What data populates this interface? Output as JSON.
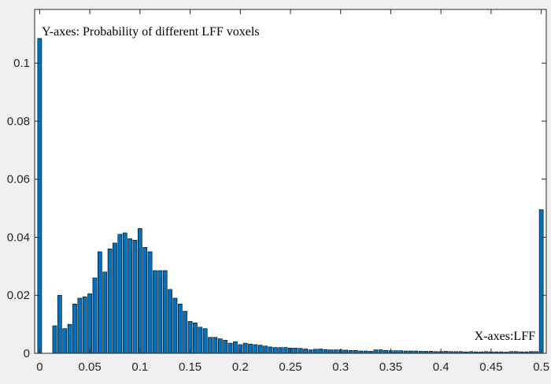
{
  "colors": {
    "bar_fill": "#0072BD",
    "bar_edge": "#000000",
    "axes_background": "#ffffff",
    "figure_background": "#f0f0f0",
    "axis_color": "#262626"
  },
  "chart_data": {
    "type": "bar",
    "title": "",
    "xlabel": "",
    "ylabel": "",
    "xlim": [
      -0.005,
      0.505
    ],
    "ylim": [
      0,
      0.1185
    ],
    "bin_width": 0.005,
    "box": true,
    "grid": false,
    "legend": "none",
    "x_ticks": [
      0,
      0.05,
      0.1,
      0.15,
      0.2,
      0.25,
      0.3,
      0.35,
      0.4,
      0.45,
      0.5
    ],
    "x_tick_labels": [
      "0",
      "0.05",
      "0.1",
      "0.15",
      "0.2",
      "0.25",
      "0.3",
      "0.35",
      "0.4",
      "0.45",
      "0.5"
    ],
    "y_ticks": [
      0,
      0.02,
      0.04,
      0.06,
      0.08,
      0.1
    ],
    "y_tick_labels": [
      "0",
      "0.02",
      "0.04",
      "0.06",
      "0.08",
      "0.1"
    ],
    "annotations": [
      {
        "text": "Y-axes: Probability of different LFF voxels",
        "position": "top-left"
      },
      {
        "text": "X-axes:LFF",
        "position": "bottom-right"
      }
    ],
    "series": [
      {
        "x": [
          0,
          0.005,
          0.01,
          0.015,
          0.02,
          0.025,
          0.03,
          0.035,
          0.04,
          0.045,
          0.05,
          0.055,
          0.06,
          0.065,
          0.07,
          0.075,
          0.08,
          0.085,
          0.09,
          0.095,
          0.1,
          0.105,
          0.11,
          0.115,
          0.12,
          0.125,
          0.13,
          0.135,
          0.14,
          0.145,
          0.15,
          0.155,
          0.16,
          0.165,
          0.17,
          0.175,
          0.18,
          0.185,
          0.19,
          0.195,
          0.2,
          0.205,
          0.21,
          0.215,
          0.22,
          0.225,
          0.23,
          0.235,
          0.24,
          0.245,
          0.25,
          0.255,
          0.26,
          0.265,
          0.27,
          0.275,
          0.28,
          0.285,
          0.29,
          0.295,
          0.3,
          0.305,
          0.31,
          0.315,
          0.32,
          0.325,
          0.33,
          0.335,
          0.34,
          0.345,
          0.35,
          0.355,
          0.36,
          0.365,
          0.37,
          0.375,
          0.38,
          0.385,
          0.39,
          0.395,
          0.4,
          0.405,
          0.41,
          0.415,
          0.42,
          0.425,
          0.43,
          0.435,
          0.44,
          0.445,
          0.45,
          0.455,
          0.46,
          0.465,
          0.47,
          0.475,
          0.48,
          0.485,
          0.49,
          0.495,
          0.5
        ],
        "values": [
          0.1085,
          0.0,
          0.0,
          0.0095,
          0.02,
          0.0085,
          0.01,
          0.017,
          0.019,
          0.0195,
          0.0205,
          0.026,
          0.035,
          0.028,
          0.036,
          0.038,
          0.041,
          0.0415,
          0.0395,
          0.039,
          0.043,
          0.0365,
          0.035,
          0.0285,
          0.0285,
          0.0285,
          0.022,
          0.019,
          0.017,
          0.0145,
          0.011,
          0.0105,
          0.009,
          0.0085,
          0.0055,
          0.0055,
          0.005,
          0.0045,
          0.0035,
          0.004,
          0.003,
          0.0035,
          0.0032,
          0.003,
          0.0028,
          0.0025,
          0.0022,
          0.002,
          0.002,
          0.002,
          0.0018,
          0.0018,
          0.0017,
          0.0015,
          0.0012,
          0.0014,
          0.0015,
          0.0013,
          0.0012,
          0.0012,
          0.0012,
          0.0011,
          0.001,
          0.001,
          0.0008,
          0.0008,
          0.0007,
          0.0012,
          0.0012,
          0.001,
          0.0009,
          0.0009,
          0.0009,
          0.0008,
          0.0008,
          0.0008,
          0.0007,
          0.0007,
          0.0007,
          0.0006,
          0.0006,
          0.0007,
          0.0006,
          0.0006,
          0.0006,
          0.0005,
          0.0006,
          0.0005,
          0.0005,
          0.0006,
          0.0005,
          0.0005,
          0.0005,
          0.0004,
          0.0006,
          0.0006,
          0.0005,
          0.0005,
          0.0006,
          0.0006,
          0.0495
        ]
      }
    ]
  }
}
